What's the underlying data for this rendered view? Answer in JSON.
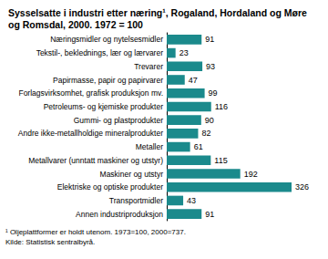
{
  "chart_data": {
    "type": "bar",
    "title": "Sysselsatte i industri etter næring¹, Rogaland, Hordaland og Møre og Romsdal, 2000. 1972 = 100",
    "annotations": [
      "¹ Oljeplattformer er holdt utenom. 1973=100, 2000=737.",
      "Kilde: Statistisk sentralbyrå."
    ],
    "categories": [
      "Næringsmidler og nytelsesmidler",
      "Tekstil-, beklednings, lær og lærvarer",
      "Trevarer",
      "Papirmasse, papir og papirvarer",
      "Forlagsvirksomhet, grafisk produksjon mv.",
      "Petroleums- og kjemiske produkter",
      "Gummi- og plastprodukter",
      "Andre ikke-metallholdige mineralprodukter",
      "Metaller",
      "Metallvarer (unntatt maskiner og utstyr)",
      "Maskiner og utstyr",
      "Elektriske og optiske produkter",
      "Transportmidler",
      "Annen industriproduksjon"
    ],
    "values": [
      91,
      23,
      93,
      47,
      99,
      116,
      90,
      82,
      61,
      115,
      192,
      326,
      43,
      91
    ],
    "color": "#1b8a8c",
    "orientation": "horizontal",
    "data_labels": true,
    "tick_labels": "y",
    "grid": false,
    "xlim": [
      0,
      326
    ]
  }
}
